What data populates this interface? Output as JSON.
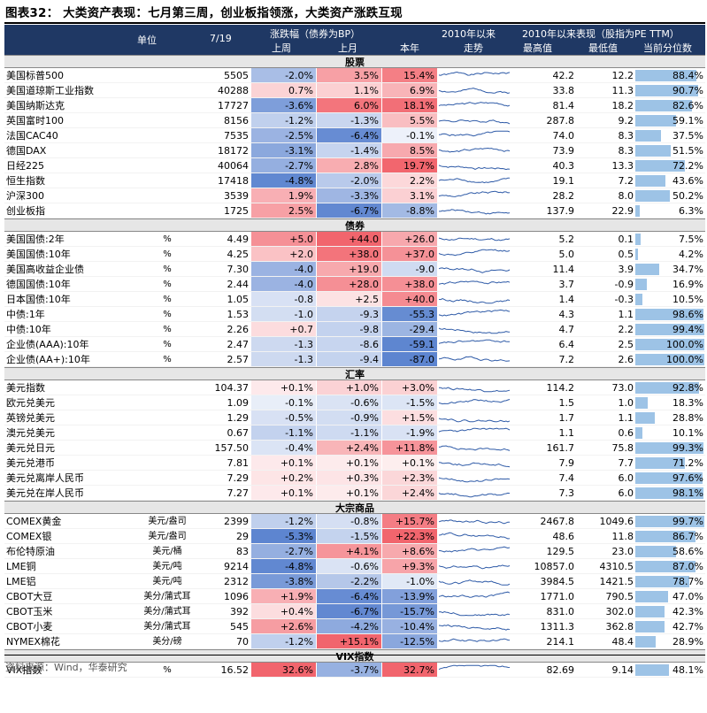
{
  "figure": {
    "title": "图表32：  大类资产表现：七月第三周，创业板指领涨，大类资产涨跌互现",
    "source": "资料来源：Wind，华泰研究"
  },
  "header": {
    "unit": "单位",
    "date": "7/19",
    "change_group": "涨跌幅（债券为BP）",
    "week": "上周",
    "month": "上月",
    "ytd": "本年",
    "trend_line1": "2010年以来",
    "trend_line2": "走势",
    "perf_group": "2010年以来表现（股指为PE TTM）",
    "high": "最高值",
    "low": "最低值",
    "pctile": "当前分位数"
  },
  "colors": {
    "header_bg": "#1f3864",
    "section_bg": "#e6e6e6",
    "sparkline": "#2e5aa7",
    "pct_bar": "#9dc3e6",
    "positive_strong": "#f4777f",
    "negative_strong": "#5a8ad6"
  },
  "sections": [
    {
      "title": "股票",
      "rows": [
        {
          "name": "美国标普500",
          "unit": "",
          "value": "5505",
          "w": "-2.0%",
          "m": "3.5%",
          "y": "15.4%",
          "hi": "42.2",
          "lo": "12.2",
          "pct": "88.4%",
          "wv": -2.0,
          "mv": 3.5,
          "yv": 15.4,
          "pv": 88.4
        },
        {
          "name": "美国道琼斯工业指数",
          "unit": "",
          "value": "40288",
          "w": "0.7%",
          "m": "1.1%",
          "y": "6.9%",
          "hi": "33.8",
          "lo": "11.3",
          "pct": "90.7%",
          "wv": 0.7,
          "mv": 1.1,
          "yv": 6.9,
          "pv": 90.7
        },
        {
          "name": "美国纳斯达克",
          "unit": "",
          "value": "17727",
          "w": "-3.6%",
          "m": "6.0%",
          "y": "18.1%",
          "hi": "81.4",
          "lo": "18.2",
          "pct": "82.6%",
          "wv": -3.6,
          "mv": 6.0,
          "yv": 18.1,
          "pv": 82.6
        },
        {
          "name": "英国富时100",
          "unit": "",
          "value": "8156",
          "w": "-1.2%",
          "m": "-1.3%",
          "y": "5.5%",
          "hi": "287.8",
          "lo": "9.2",
          "pct": "59.1%",
          "wv": -1.2,
          "mv": -1.3,
          "yv": 5.5,
          "pv": 59.1
        },
        {
          "name": "法国CAC40",
          "unit": "",
          "value": "7535",
          "w": "-2.5%",
          "m": "-6.4%",
          "y": "-0.1%",
          "hi": "74.0",
          "lo": "8.3",
          "pct": "37.5%",
          "wv": -2.5,
          "mv": -6.4,
          "yv": -0.1,
          "pv": 37.5
        },
        {
          "name": "德国DAX",
          "unit": "",
          "value": "18172",
          "w": "-3.1%",
          "m": "-1.4%",
          "y": "8.5%",
          "hi": "73.9",
          "lo": "8.3",
          "pct": "51.5%",
          "wv": -3.1,
          "mv": -1.4,
          "yv": 8.5,
          "pv": 51.5
        },
        {
          "name": "日经225",
          "unit": "",
          "value": "40064",
          "w": "-2.7%",
          "m": "2.8%",
          "y": "19.7%",
          "hi": "40.3",
          "lo": "13.3",
          "pct": "72.2%",
          "wv": -2.7,
          "mv": 2.8,
          "yv": 19.7,
          "pv": 72.2
        },
        {
          "name": "恒生指数",
          "unit": "",
          "value": "17418",
          "w": "-4.8%",
          "m": "-2.0%",
          "y": "2.2%",
          "hi": "19.1",
          "lo": "7.2",
          "pct": "43.6%",
          "wv": -4.8,
          "mv": -2.0,
          "yv": 2.2,
          "pv": 43.6
        },
        {
          "name": "沪深300",
          "unit": "",
          "value": "3539",
          "w": "1.9%",
          "m": "-3.3%",
          "y": "3.1%",
          "hi": "28.2",
          "lo": "8.0",
          "pct": "50.2%",
          "wv": 1.9,
          "mv": -3.3,
          "yv": 3.1,
          "pv": 50.2
        },
        {
          "name": "创业板指",
          "unit": "",
          "value": "1725",
          "w": "2.5%",
          "m": "-6.7%",
          "y": "-8.8%",
          "hi": "137.9",
          "lo": "22.9",
          "pct": "6.3%",
          "wv": 2.5,
          "mv": -6.7,
          "yv": -8.8,
          "pv": 6.3
        }
      ]
    },
    {
      "title": "债券",
      "rows": [
        {
          "name": "美国国债:2年",
          "unit": "%",
          "value": "4.49",
          "w": "+5.0",
          "m": "+44.0",
          "y": "+26.0",
          "hi": "5.2",
          "lo": "0.1",
          "pct": "7.5%",
          "wv": 5.0,
          "mv": 44.0,
          "yv": 26.0,
          "pv": 7.5
        },
        {
          "name": "美国国债:10年",
          "unit": "%",
          "value": "4.25",
          "w": "+2.0",
          "m": "+38.0",
          "y": "+37.0",
          "hi": "5.0",
          "lo": "0.5",
          "pct": "4.2%",
          "wv": 2.0,
          "mv": 38.0,
          "yv": 37.0,
          "pv": 4.2
        },
        {
          "name": "美国高收益企业债",
          "unit": "%",
          "value": "7.30",
          "w": "-4.0",
          "m": "+19.0",
          "y": "-9.0",
          "hi": "11.4",
          "lo": "3.9",
          "pct": "34.7%",
          "wv": -4.0,
          "mv": 19.0,
          "yv": -9.0,
          "pv": 34.7
        },
        {
          "name": "德国国债:10年",
          "unit": "%",
          "value": "2.44",
          "w": "-4.0",
          "m": "+28.0",
          "y": "+38.0",
          "hi": "3.7",
          "lo": "-0.9",
          "pct": "16.9%",
          "wv": -4.0,
          "mv": 28.0,
          "yv": 38.0,
          "pv": 16.9
        },
        {
          "name": "日本国债:10年",
          "unit": "%",
          "value": "1.05",
          "w": "-0.8",
          "m": "+2.5",
          "y": "+40.0",
          "hi": "1.4",
          "lo": "-0.3",
          "pct": "10.5%",
          "wv": -0.8,
          "mv": 2.5,
          "yv": 40.0,
          "pv": 10.5
        },
        {
          "name": "中债:1年",
          "unit": "%",
          "value": "1.53",
          "w": "-1.0",
          "m": "-9.3",
          "y": "-55.3",
          "hi": "4.3",
          "lo": "1.1",
          "pct": "98.6%",
          "wv": -1.0,
          "mv": -9.3,
          "yv": -55.3,
          "pv": 98.6
        },
        {
          "name": "中债:10年",
          "unit": "%",
          "value": "2.26",
          "w": "+0.7",
          "m": "-9.8",
          "y": "-29.4",
          "hi": "4.7",
          "lo": "2.2",
          "pct": "99.4%",
          "wv": 0.7,
          "mv": -9.8,
          "yv": -29.4,
          "pv": 99.4
        },
        {
          "name": "企业债(AAA):10年",
          "unit": "%",
          "value": "2.47",
          "w": "-1.3",
          "m": "-8.6",
          "y": "-59.1",
          "hi": "6.4",
          "lo": "2.5",
          "pct": "100.0%",
          "wv": -1.3,
          "mv": -8.6,
          "yv": -59.1,
          "pv": 100.0
        },
        {
          "name": "企业债(AA+):10年",
          "unit": "%",
          "value": "2.57",
          "w": "-1.3",
          "m": "-9.4",
          "y": "-87.0",
          "hi": "7.2",
          "lo": "2.6",
          "pct": "100.0%",
          "wv": -1.3,
          "mv": -9.4,
          "yv": -87.0,
          "pv": 100.0
        }
      ]
    },
    {
      "title": "汇率",
      "rows": [
        {
          "name": "美元指数",
          "unit": "",
          "value": "104.37",
          "w": "+0.1%",
          "m": "+1.0%",
          "y": "+3.0%",
          "hi": "114.2",
          "lo": "73.0",
          "pct": "92.8%",
          "wv": 0.1,
          "mv": 1.0,
          "yv": 3.0,
          "pv": 92.8
        },
        {
          "name": "欧元兑美元",
          "unit": "",
          "value": "1.09",
          "w": "-0.1%",
          "m": "-0.6%",
          "y": "-1.5%",
          "hi": "1.5",
          "lo": "1.0",
          "pct": "18.3%",
          "wv": -0.1,
          "mv": -0.6,
          "yv": -1.5,
          "pv": 18.3
        },
        {
          "name": "英镑兑美元",
          "unit": "",
          "value": "1.29",
          "w": "-0.5%",
          "m": "-0.9%",
          "y": "+1.5%",
          "hi": "1.7",
          "lo": "1.1",
          "pct": "28.8%",
          "wv": -0.5,
          "mv": -0.9,
          "yv": 1.5,
          "pv": 28.8
        },
        {
          "name": "澳元兑美元",
          "unit": "",
          "value": "0.67",
          "w": "-1.1%",
          "m": "-1.1%",
          "y": "-1.9%",
          "hi": "1.1",
          "lo": "0.6",
          "pct": "10.1%",
          "wv": -1.1,
          "mv": -1.1,
          "yv": -1.9,
          "pv": 10.1
        },
        {
          "name": "美元兑日元",
          "unit": "",
          "value": "157.50",
          "w": "-0.4%",
          "m": "+2.4%",
          "y": "+11.8%",
          "hi": "161.7",
          "lo": "75.8",
          "pct": "99.3%",
          "wv": -0.4,
          "mv": 2.4,
          "yv": 11.8,
          "pv": 99.3
        },
        {
          "name": "美元兑港币",
          "unit": "",
          "value": "7.81",
          "w": "+0.1%",
          "m": "+0.1%",
          "y": "+0.1%",
          "hi": "7.9",
          "lo": "7.7",
          "pct": "71.2%",
          "wv": 0.1,
          "mv": 0.1,
          "yv": 0.1,
          "pv": 71.2
        },
        {
          "name": "美元兑离岸人民币",
          "unit": "",
          "value": "7.29",
          "w": "+0.2%",
          "m": "+0.3%",
          "y": "+2.3%",
          "hi": "7.4",
          "lo": "6.0",
          "pct": "97.6%",
          "wv": 0.2,
          "mv": 0.3,
          "yv": 2.3,
          "pv": 97.6
        },
        {
          "name": "美元兑在岸人民币",
          "unit": "",
          "value": "7.27",
          "w": "+0.1%",
          "m": "+0.1%",
          "y": "+2.4%",
          "hi": "7.3",
          "lo": "6.0",
          "pct": "98.1%",
          "wv": 0.1,
          "mv": 0.1,
          "yv": 2.4,
          "pv": 98.1
        }
      ]
    },
    {
      "title": "大宗商品",
      "rows": [
        {
          "name": "COMEX黄金",
          "unit": "美元/盎司",
          "value": "2399",
          "w": "-1.2%",
          "m": "-0.8%",
          "y": "+15.7%",
          "hi": "2467.8",
          "lo": "1049.6",
          "pct": "99.7%",
          "wv": -1.2,
          "mv": -0.8,
          "yv": 15.7,
          "pv": 99.7
        },
        {
          "name": "COMEX银",
          "unit": "美元/盎司",
          "value": "29",
          "w": "-5.3%",
          "m": "-1.5%",
          "y": "+22.3%",
          "hi": "48.6",
          "lo": "11.8",
          "pct": "86.7%",
          "wv": -5.3,
          "mv": -1.5,
          "yv": 22.3,
          "pv": 86.7
        },
        {
          "name": "布伦特原油",
          "unit": "美元/桶",
          "value": "83",
          "w": "-2.7%",
          "m": "+4.1%",
          "y": "+8.6%",
          "hi": "129.5",
          "lo": "23.0",
          "pct": "58.6%",
          "wv": -2.7,
          "mv": 4.1,
          "yv": 8.6,
          "pv": 58.6
        },
        {
          "name": "LME铜",
          "unit": "美元/吨",
          "value": "9214",
          "w": "-4.8%",
          "m": "-0.6%",
          "y": "+9.3%",
          "hi": "10857.0",
          "lo": "4310.5",
          "pct": "87.0%",
          "wv": -4.8,
          "mv": -0.6,
          "yv": 9.3,
          "pv": 87.0
        },
        {
          "name": "LME铝",
          "unit": "美元/吨",
          "value": "2312",
          "w": "-3.8%",
          "m": "-2.2%",
          "y": "-1.0%",
          "hi": "3984.5",
          "lo": "1421.5",
          "pct": "78.7%",
          "wv": -3.8,
          "mv": -2.2,
          "yv": -1.0,
          "pv": 78.7
        },
        {
          "name": "CBOT大豆",
          "unit": "美分/蒲式耳",
          "value": "1096",
          "w": "+1.9%",
          "m": "-6.4%",
          "y": "-13.9%",
          "hi": "1771.0",
          "lo": "790.5",
          "pct": "47.0%",
          "wv": 1.9,
          "mv": -6.4,
          "yv": -13.9,
          "pv": 47.0
        },
        {
          "name": "CBOT玉米",
          "unit": "美分/蒲式耳",
          "value": "392",
          "w": "+0.4%",
          "m": "-6.7%",
          "y": "-15.7%",
          "hi": "831.0",
          "lo": "302.0",
          "pct": "42.3%",
          "wv": 0.4,
          "mv": -6.7,
          "yv": -15.7,
          "pv": 42.3
        },
        {
          "name": "CBOT小麦",
          "unit": "美分/蒲式耳",
          "value": "545",
          "w": "+2.6%",
          "m": "-4.2%",
          "y": "-10.4%",
          "hi": "1311.3",
          "lo": "362.8",
          "pct": "42.7%",
          "wv": 2.6,
          "mv": -4.2,
          "yv": -10.4,
          "pv": 42.7
        },
        {
          "name": "NYMEX棉花",
          "unit": "美分/磅",
          "value": "70",
          "w": "-1.2%",
          "m": "+15.1%",
          "y": "-12.5%",
          "hi": "214.1",
          "lo": "48.4",
          "pct": "28.9%",
          "wv": -1.2,
          "mv": 15.1,
          "yv": -12.5,
          "pv": 28.9
        }
      ]
    },
    {
      "title": "VIX指数",
      "rows": [
        {
          "name": "VIX指数",
          "unit": "%",
          "value": "16.52",
          "w": "32.6%",
          "m": "-3.7%",
          "y": "32.7%",
          "hi": "82.69",
          "lo": "9.14",
          "pct": "48.1%",
          "wv": 32.6,
          "mv": -3.7,
          "yv": 32.7,
          "pv": 48.1
        }
      ]
    }
  ]
}
